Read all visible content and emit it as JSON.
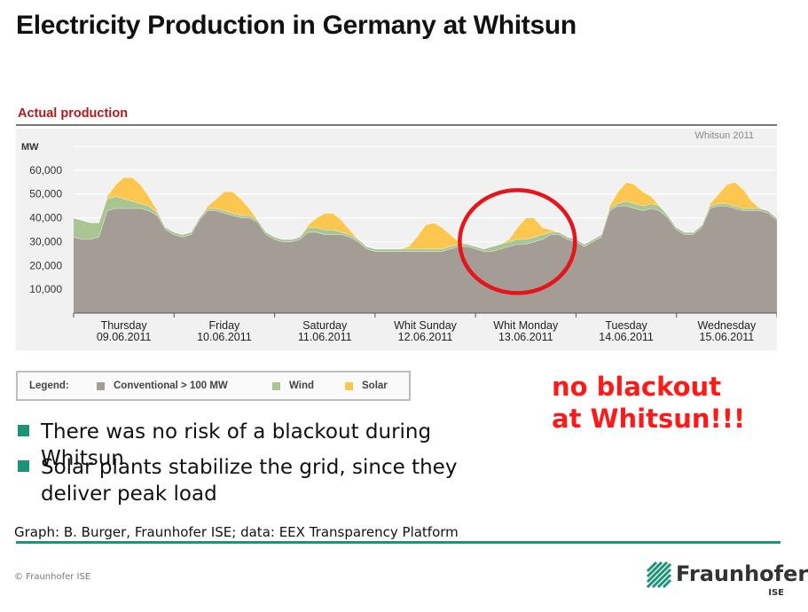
{
  "slide": {
    "title": "Electricity Production in Germany at Whitsun",
    "section_label": "Actual production",
    "callout": [
      "no blackout",
      "at  Whitsun!!!"
    ],
    "bullets": [
      "There was no risk of a blackout during Whitsun",
      "Solar plants stabilize the grid, since they deliver peak load"
    ],
    "source": "Graph: B. Burger, Fraunhofer ISE; data: EEX Transparency Platform",
    "copyright": "© Fraunhofer ISE",
    "logo": {
      "name": "Fraunhofer",
      "sub": "ISE"
    },
    "colors": {
      "accent_green": "#1a9377",
      "callout_red": "#ff1a1a",
      "title_red": "#b5181d",
      "circle_red": "#e8141b"
    }
  },
  "legend": {
    "label": "Legend:",
    "items": [
      {
        "label": "Conventional > 100 MW",
        "color": "#a39d96"
      },
      {
        "label": "Wind",
        "color": "#a9c592"
      },
      {
        "label": "Solar",
        "color": "#fdc64f"
      }
    ]
  },
  "chart_data": {
    "type": "area",
    "stacked": true,
    "annotation": "Whitsun 2011",
    "ylabel": "MW",
    "ylim": [
      0,
      70000
    ],
    "yticks": [
      10000,
      20000,
      30000,
      40000,
      50000,
      60000
    ],
    "ytick_labels": [
      "10,000",
      "20,000",
      "30,000",
      "40,000",
      "50,000",
      "60,000"
    ],
    "grid": true,
    "days": [
      {
        "name": "Thursday",
        "date": "09.06.2011"
      },
      {
        "name": "Friday",
        "date": "10.06.2011"
      },
      {
        "name": "Saturday",
        "date": "11.06.2011"
      },
      {
        "name": "Whit Sunday",
        "date": "12.06.2011"
      },
      {
        "name": "Whit Monday",
        "date": "13.06.2011"
      },
      {
        "name": "Tuesday",
        "date": "14.06.2011"
      },
      {
        "name": "Wednesday",
        "date": "15.06.2011"
      }
    ],
    "x_unit": "hours from 09.06.2011 00:00",
    "x": [
      0,
      2,
      4,
      6,
      8,
      10,
      12,
      14,
      16,
      18,
      20,
      22,
      24,
      26,
      28,
      30,
      32,
      34,
      36,
      38,
      40,
      42,
      44,
      46,
      48,
      50,
      52,
      54,
      56,
      58,
      60,
      62,
      64,
      66,
      68,
      70,
      72,
      74,
      76,
      78,
      80,
      82,
      84,
      86,
      88,
      90,
      92,
      94,
      96,
      98,
      100,
      102,
      104,
      106,
      108,
      110,
      112,
      114,
      116,
      118,
      120,
      122,
      124,
      126,
      128,
      130,
      132,
      134,
      136,
      138,
      140,
      142,
      144,
      146,
      148,
      150,
      152,
      154,
      156,
      158,
      160,
      162,
      164,
      166,
      168
    ],
    "series": [
      {
        "name": "Conventional > 100 MW",
        "color": "#a39d96",
        "values": [
          32000,
          31000,
          31000,
          32000,
          43000,
          44000,
          44000,
          44000,
          44000,
          43000,
          41000,
          35000,
          33000,
          32000,
          33000,
          39000,
          43000,
          43000,
          42000,
          41000,
          40000,
          40000,
          38000,
          33000,
          31000,
          30000,
          30000,
          31000,
          34000,
          34000,
          33000,
          33000,
          33000,
          32000,
          30000,
          27000,
          26000,
          26000,
          26000,
          26000,
          26000,
          26000,
          26000,
          26000,
          26000,
          27000,
          28000,
          28000,
          27000,
          26000,
          26000,
          27000,
          28000,
          29000,
          29000,
          30000,
          31000,
          33000,
          33000,
          31000,
          30000,
          28000,
          30000,
          32000,
          43000,
          45000,
          45000,
          44000,
          43000,
          44000,
          43000,
          40000,
          35000,
          33000,
          33000,
          36000,
          44000,
          45000,
          45000,
          44000,
          43000,
          43000,
          43000,
          42000,
          39000
        ]
      },
      {
        "name": "Wind",
        "color": "#a9c592",
        "values": [
          8000,
          8000,
          7000,
          6000,
          5000,
          5000,
          4000,
          3000,
          2000,
          2000,
          1000,
          1000,
          1000,
          1000,
          1000,
          1000,
          1000,
          1000,
          1000,
          1000,
          1000,
          1000,
          1000,
          1000,
          1000,
          1000,
          1000,
          1000,
          2000,
          2000,
          2000,
          2000,
          1000,
          1000,
          1000,
          1000,
          1000,
          1000,
          1000,
          1000,
          1000,
          1000,
          1000,
          1000,
          1000,
          1000,
          1000,
          1000,
          1000,
          1000,
          2000,
          2000,
          2000,
          2000,
          2000,
          2000,
          2000,
          1000,
          1000,
          1000,
          1000,
          1000,
          1000,
          1000,
          1000,
          1000,
          2000,
          2000,
          2000,
          2000,
          2000,
          1000,
          1000,
          1000,
          1000,
          1000,
          1000,
          1000,
          1000,
          1000,
          1000,
          1000,
          1000,
          1000,
          1000
        ]
      },
      {
        "name": "Solar",
        "color": "#fdc64f",
        "values": [
          0,
          0,
          0,
          0,
          1000,
          5000,
          9000,
          10000,
          8000,
          4000,
          1000,
          0,
          0,
          0,
          0,
          0,
          1000,
          4000,
          8000,
          9000,
          7000,
          3000,
          0,
          0,
          0,
          0,
          0,
          0,
          1000,
          4000,
          7000,
          7000,
          5000,
          2000,
          0,
          0,
          0,
          0,
          0,
          0,
          1000,
          5000,
          10000,
          11000,
          9000,
          5000,
          1000,
          0,
          0,
          0,
          0,
          0,
          1000,
          5000,
          9000,
          8000,
          3000,
          1000,
          0,
          0,
          0,
          0,
          0,
          0,
          1000,
          5000,
          8000,
          8000,
          6000,
          3000,
          0,
          0,
          0,
          0,
          0,
          0,
          1000,
          4000,
          8000,
          10000,
          8000,
          3000,
          0,
          0,
          0
        ]
      }
    ]
  }
}
